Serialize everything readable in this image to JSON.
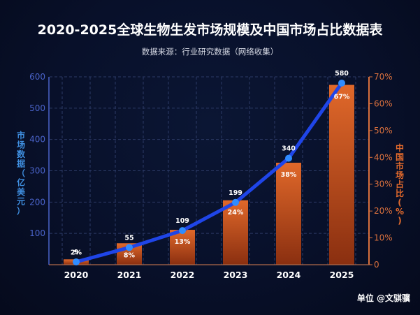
{
  "header": {
    "title": "2020-2025全球生物生发市场规模及中国市场占比数据表",
    "subtitle": "数据来源：行业研究数据（网络收集）"
  },
  "watermark": "单位 @文骐骥",
  "colors": {
    "line": "#1f45e8",
    "point": "#2f8cff",
    "bar_top": "#e0682a",
    "bar_bottom": "#8a2f10",
    "left_axis": "#4a63c9",
    "right_axis": "#d9703d",
    "grid": "#2c3a66"
  },
  "chart_data": {
    "type": "bar+line",
    "title": "2020-2025全球生物生发市场规模及中国市场占比数据表",
    "subtitle": "数据来源：行业研究数据（网络收集）",
    "categories": [
      "2020",
      "2021",
      "2022",
      "2023",
      "2024",
      "2025"
    ],
    "series": [
      {
        "name": "市场数据（亿美元）",
        "type": "line",
        "axis": "left",
        "values": [
          9,
          55,
          109,
          199,
          340,
          580
        ],
        "labels": [
          "9",
          "55",
          "109",
          "199",
          "340",
          "580"
        ]
      },
      {
        "name": "中国市场占比(%)",
        "type": "bar",
        "axis": "right",
        "values": [
          2,
          8,
          13,
          24,
          38,
          67
        ],
        "labels": [
          "2%",
          "8%",
          "13%",
          "24%",
          "38%",
          "67%"
        ]
      }
    ],
    "ylabel_left": "市场数据（亿美元）",
    "ylabel_right": "中国市场占比(%)",
    "ylim_left": [
      0,
      600
    ],
    "ylim_right": [
      0,
      70
    ],
    "yticks_left": [
      "100",
      "200",
      "300",
      "400",
      "500",
      "600"
    ],
    "yticks_right": [
      "0",
      "10%",
      "20%",
      "30%",
      "40%",
      "50%",
      "60%",
      "70%"
    ],
    "grid": true,
    "legend": "none"
  }
}
